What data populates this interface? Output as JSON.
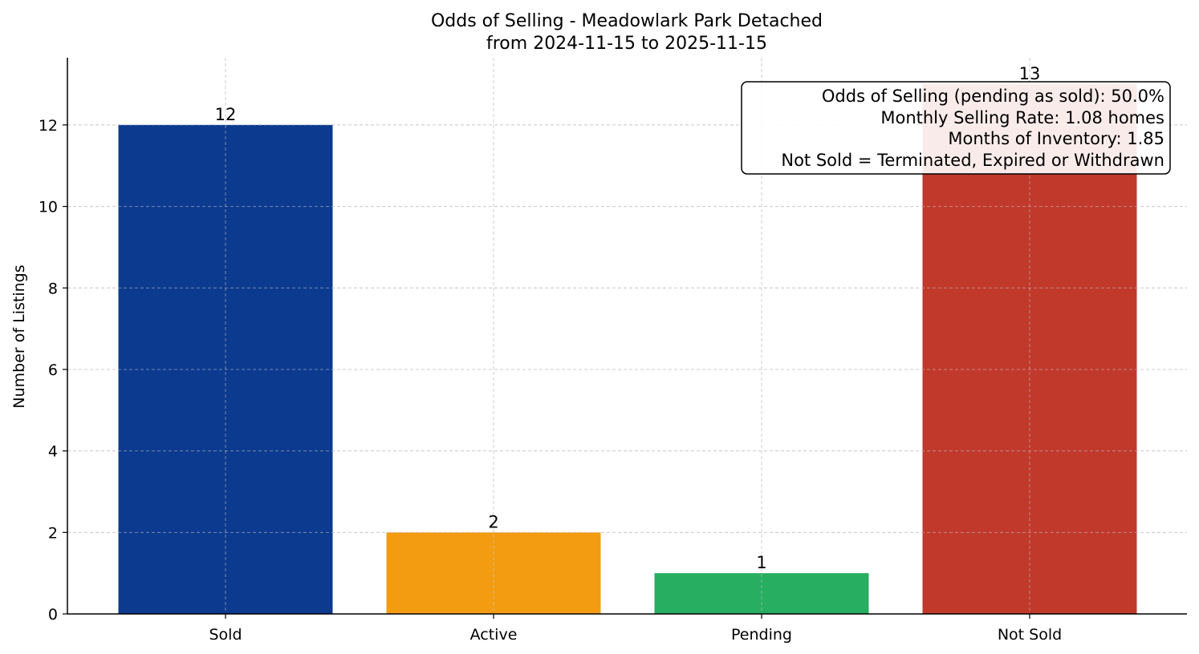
{
  "chart_data": {
    "type": "bar",
    "title": "Odds of Selling - Meadowlark Park Detached",
    "subtitle": "from 2024-11-15 to 2025-11-15",
    "xlabel": "",
    "ylabel": "Number of Listings",
    "categories": [
      "Sold",
      "Active",
      "Pending",
      "Not Sold"
    ],
    "values": [
      12,
      2,
      1,
      13
    ],
    "value_labels": [
      "12",
      "2",
      "1",
      "13"
    ],
    "colors": [
      "#0b3a8f",
      "#f39c12",
      "#27ae60",
      "#c0392b"
    ],
    "ylim": [
      0,
      13.65
    ],
    "yticks": [
      0,
      2,
      4,
      6,
      8,
      10,
      12
    ],
    "grid": true,
    "annotation": {
      "placement": "top-right",
      "lines": [
        "Odds of Selling (pending as sold): 50.0%",
        "Monthly Selling Rate: 1.08 homes",
        "Months of Inventory: 1.85",
        "Not Sold = Terminated, Expired or Withdrawn"
      ]
    }
  }
}
